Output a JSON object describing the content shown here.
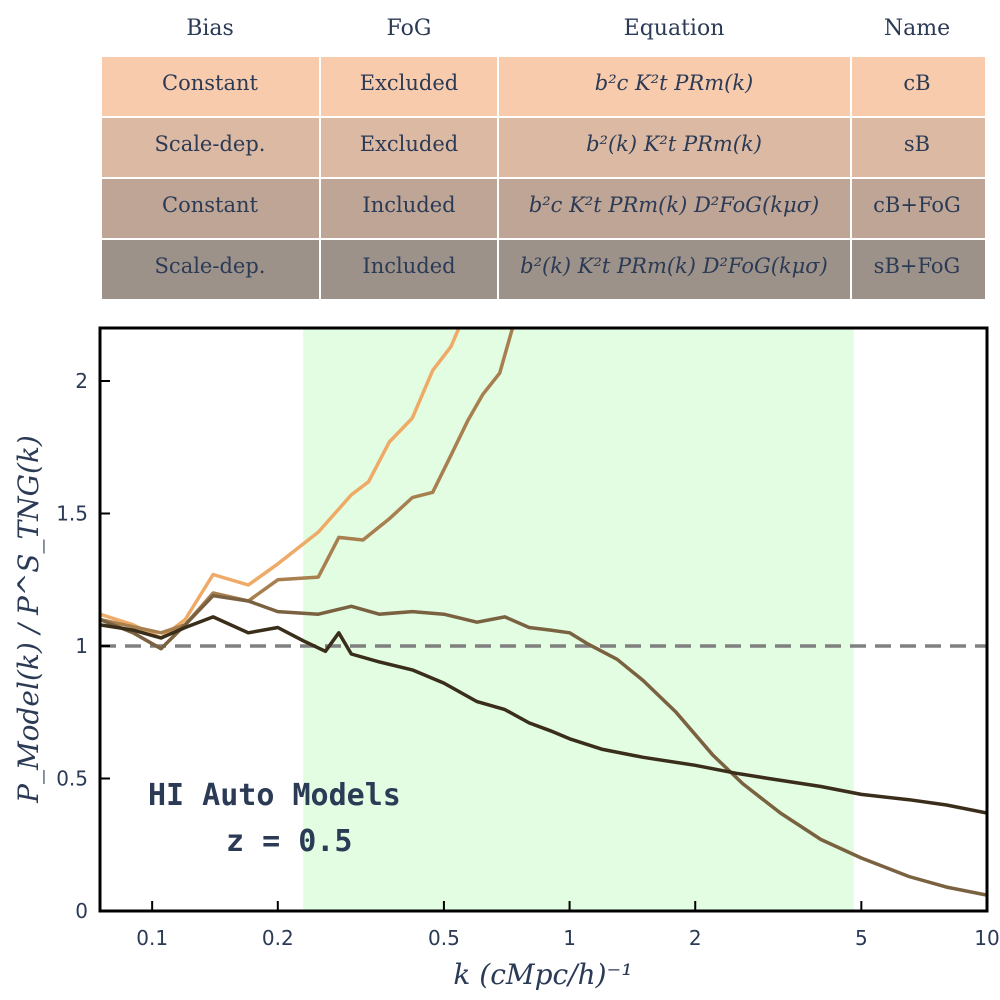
{
  "table": {
    "headers": [
      "Bias",
      "FoG",
      "Equation",
      "Name"
    ],
    "rows": [
      {
        "bias": "Constant",
        "fog": "Excluded",
        "equation": "b²c K²t PRm(k)",
        "name": "cB",
        "color": "#f8cbad"
      },
      {
        "bias": "Scale-dep.",
        "fog": "Excluded",
        "equation": "b²(k) K²t PRm(k)",
        "name": "sB",
        "color": "#dcb9a3"
      },
      {
        "bias": "Constant",
        "fog": "Included",
        "equation": "b²c K²t PRm(k) D²FoG(kμσ)",
        "name": "cB+FoG",
        "color": "#bea596"
      },
      {
        "bias": "Scale-dep.",
        "fog": "Included",
        "equation": "b²(k) K²t PRm(k) D²FoG(kμσ)",
        "name": "sB+FoG",
        "color": "#9d928a"
      }
    ]
  },
  "chart_data": {
    "type": "line",
    "xscale": "log",
    "xlim": [
      0.075,
      10
    ],
    "ylim": [
      0,
      2.2
    ],
    "xticks": [
      0.1,
      0.2,
      0.5,
      1,
      2,
      5,
      10
    ],
    "xtick_labels": [
      "0.1",
      "0.2",
      "0.5",
      "1",
      "2",
      "5",
      "10"
    ],
    "yticks": [
      0,
      0.5,
      1,
      1.5,
      2
    ],
    "ytick_labels": [
      "0",
      "0.5",
      "1",
      "1.5",
      "2"
    ],
    "xlabel": "k (cMpc/h)⁻¹",
    "ylabel": "P_Model(k) / P^S_TNG(k)",
    "reference_line": {
      "y": 1,
      "color": "#808080",
      "style": "dashed"
    },
    "shaded_region": {
      "x": [
        0.23,
        4.8
      ],
      "color": "#e2fde2"
    },
    "annotation": {
      "line1": "HI Auto Models",
      "line2": "z = 0.5"
    },
    "series": [
      {
        "name": "cB",
        "color": "#eeaa66",
        "x": [
          0.075,
          0.09,
          0.105,
          0.12,
          0.14,
          0.17,
          0.2,
          0.25,
          0.3,
          0.33,
          0.37,
          0.42,
          0.47,
          0.52,
          0.55
        ],
        "y": [
          1.12,
          1.08,
          1.03,
          1.1,
          1.27,
          1.23,
          1.31,
          1.43,
          1.57,
          1.62,
          1.77,
          1.86,
          2.04,
          2.13,
          2.22
        ]
      },
      {
        "name": "sB",
        "color": "#a88050",
        "x": [
          0.075,
          0.105,
          0.12,
          0.14,
          0.17,
          0.2,
          0.25,
          0.28,
          0.32,
          0.37,
          0.42,
          0.47,
          0.52,
          0.57,
          0.62,
          0.68,
          0.73
        ],
        "y": [
          1.1,
          1.05,
          1.08,
          1.2,
          1.17,
          1.25,
          1.26,
          1.41,
          1.4,
          1.48,
          1.56,
          1.58,
          1.72,
          1.85,
          1.95,
          2.03,
          2.2
        ]
      },
      {
        "name": "cB+FoG",
        "color": "#7a6240",
        "x": [
          0.075,
          0.09,
          0.105,
          0.12,
          0.14,
          0.17,
          0.2,
          0.25,
          0.3,
          0.35,
          0.42,
          0.5,
          0.6,
          0.7,
          0.8,
          0.9,
          1.0,
          1.1,
          1.3,
          1.5,
          1.8,
          2.2,
          2.6,
          3.2,
          4.0,
          5.0,
          6.5,
          8.0,
          10.0
        ],
        "y": [
          1.1,
          1.05,
          0.99,
          1.08,
          1.19,
          1.17,
          1.13,
          1.12,
          1.15,
          1.12,
          1.13,
          1.12,
          1.09,
          1.11,
          1.07,
          1.06,
          1.05,
          1.01,
          0.95,
          0.87,
          0.75,
          0.59,
          0.48,
          0.37,
          0.27,
          0.2,
          0.13,
          0.09,
          0.06
        ]
      },
      {
        "name": "sB+FoG",
        "color": "#3a2e1a",
        "x": [
          0.075,
          0.09,
          0.105,
          0.12,
          0.14,
          0.17,
          0.2,
          0.23,
          0.26,
          0.28,
          0.3,
          0.35,
          0.42,
          0.5,
          0.6,
          0.7,
          0.8,
          0.9,
          1.0,
          1.2,
          1.5,
          2.0,
          2.5,
          3.0,
          4.0,
          5.0,
          6.5,
          8.0,
          10.0
        ],
        "y": [
          1.08,
          1.06,
          1.03,
          1.07,
          1.11,
          1.05,
          1.07,
          1.02,
          0.98,
          1.05,
          0.97,
          0.94,
          0.91,
          0.86,
          0.79,
          0.76,
          0.71,
          0.68,
          0.65,
          0.61,
          0.58,
          0.55,
          0.52,
          0.5,
          0.47,
          0.44,
          0.42,
          0.4,
          0.37
        ]
      }
    ]
  }
}
